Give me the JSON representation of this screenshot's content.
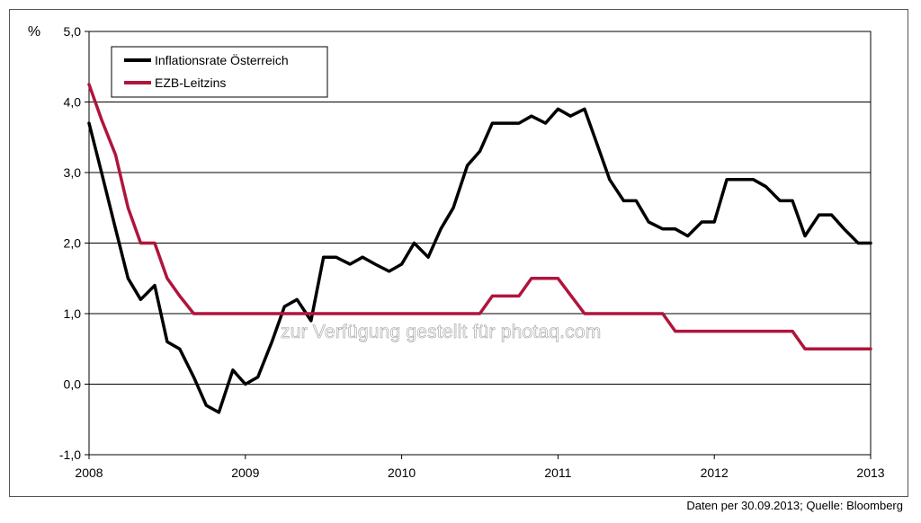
{
  "chart_data": {
    "type": "line",
    "ylabel": "%",
    "ylim": [
      -1.0,
      5.0
    ],
    "xlim": [
      2008,
      2013
    ],
    "grid": true,
    "legend_position": "top-left",
    "y_ticks": [
      "-1,0",
      "0,0",
      "1,0",
      "2,0",
      "3,0",
      "4,0",
      "5,0"
    ],
    "y_tick_values": [
      -1,
      0,
      1,
      2,
      3,
      4,
      5
    ],
    "x_ticks": [
      "2008",
      "2009",
      "2010",
      "2011",
      "2012",
      "2013"
    ],
    "x_tick_values": [
      2008,
      2009,
      2010,
      2011,
      2012,
      2013
    ],
    "series": [
      {
        "name": "Inflationsrate Österreich",
        "color": "#000000",
        "points": [
          [
            2008.0,
            3.7
          ],
          [
            2008.08,
            3.0
          ],
          [
            2008.17,
            2.2
          ],
          [
            2008.25,
            1.5
          ],
          [
            2008.33,
            1.2
          ],
          [
            2008.42,
            1.4
          ],
          [
            2008.5,
            0.6
          ],
          [
            2008.58,
            0.5
          ],
          [
            2008.67,
            0.1
          ],
          [
            2008.75,
            -0.3
          ],
          [
            2008.83,
            -0.4
          ],
          [
            2008.92,
            0.2
          ],
          [
            2009.0,
            0.0
          ],
          [
            2009.08,
            0.1
          ],
          [
            2009.17,
            0.6
          ],
          [
            2009.25,
            1.1
          ],
          [
            2009.33,
            1.2
          ],
          [
            2009.42,
            0.9
          ],
          [
            2009.5,
            1.8
          ],
          [
            2009.58,
            1.8
          ],
          [
            2009.67,
            1.7
          ],
          [
            2009.75,
            1.8
          ],
          [
            2009.83,
            1.7
          ],
          [
            2009.92,
            1.6
          ],
          [
            2010.0,
            1.7
          ],
          [
            2010.08,
            2.0
          ],
          [
            2010.17,
            1.8
          ],
          [
            2010.25,
            2.2
          ],
          [
            2010.33,
            2.5
          ],
          [
            2010.42,
            3.1
          ],
          [
            2010.5,
            3.3
          ],
          [
            2010.58,
            3.7
          ],
          [
            2010.67,
            3.7
          ],
          [
            2010.75,
            3.7
          ],
          [
            2010.83,
            3.8
          ],
          [
            2010.92,
            3.7
          ],
          [
            2011.0,
            3.9
          ],
          [
            2011.08,
            3.8
          ],
          [
            2011.17,
            3.9
          ],
          [
            2011.25,
            3.4
          ],
          [
            2011.33,
            2.9
          ],
          [
            2011.42,
            2.6
          ],
          [
            2011.5,
            2.6
          ],
          [
            2011.58,
            2.3
          ],
          [
            2011.67,
            2.2
          ],
          [
            2011.75,
            2.2
          ],
          [
            2011.83,
            2.1
          ],
          [
            2011.92,
            2.3
          ],
          [
            2012.0,
            2.3
          ],
          [
            2012.08,
            2.9
          ],
          [
            2012.17,
            2.9
          ],
          [
            2012.25,
            2.9
          ],
          [
            2012.33,
            2.8
          ],
          [
            2012.42,
            2.6
          ],
          [
            2012.5,
            2.6
          ],
          [
            2012.58,
            2.1
          ],
          [
            2012.67,
            2.4
          ],
          [
            2012.75,
            2.4
          ],
          [
            2012.83,
            2.2
          ],
          [
            2012.92,
            2.0
          ],
          [
            2013.0,
            2.0
          ]
        ]
      },
      {
        "name": "EZB-Leitzins",
        "color": "#b0143c",
        "points": [
          [
            2008.0,
            4.25
          ],
          [
            2008.08,
            3.75
          ],
          [
            2008.17,
            3.25
          ],
          [
            2008.25,
            2.5
          ],
          [
            2008.33,
            2.0
          ],
          [
            2008.42,
            2.0
          ],
          [
            2008.5,
            1.5
          ],
          [
            2008.58,
            1.25
          ],
          [
            2008.67,
            1.0
          ],
          [
            2010.5,
            1.0
          ],
          [
            2010.58,
            1.25
          ],
          [
            2010.75,
            1.25
          ],
          [
            2010.83,
            1.5
          ],
          [
            2011.0,
            1.5
          ],
          [
            2011.17,
            1.0
          ],
          [
            2011.67,
            1.0
          ],
          [
            2011.75,
            0.75
          ],
          [
            2012.5,
            0.75
          ],
          [
            2012.58,
            0.5
          ],
          [
            2013.0,
            0.5
          ]
        ]
      }
    ]
  },
  "source_note": "Daten per 30.09.2013; Quelle: Bloomberg",
  "watermark": "zur Verfügung gestellt für photaq.com"
}
